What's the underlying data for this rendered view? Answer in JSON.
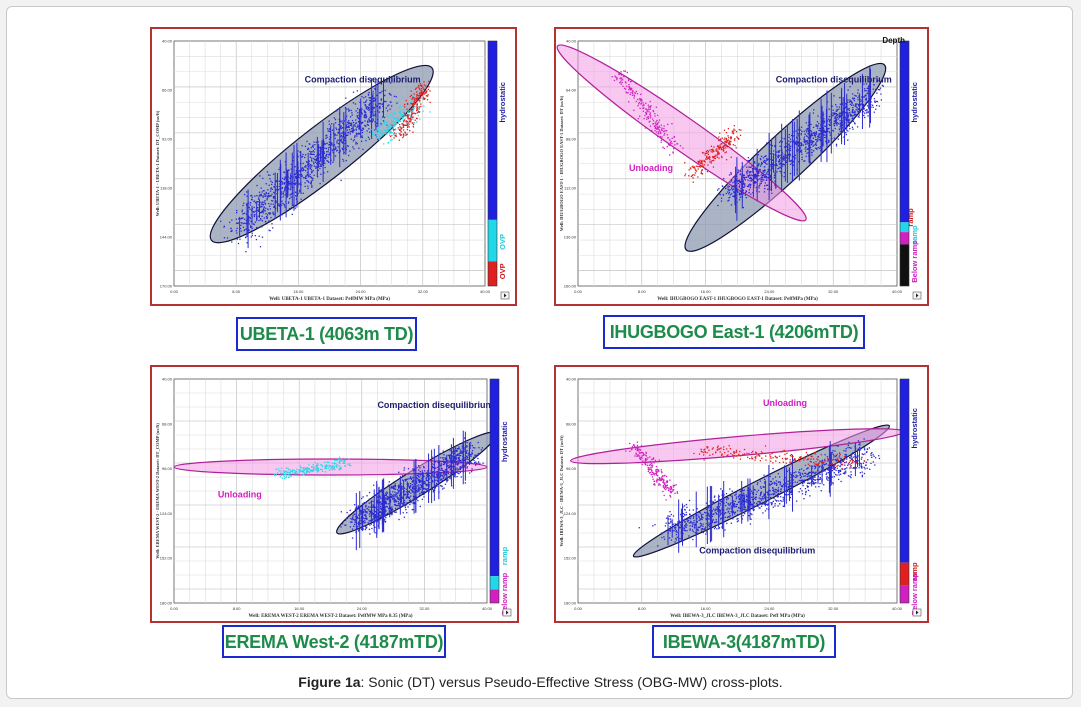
{
  "figure": {
    "caption_prefix": "Figure 1a",
    "caption_text": ": Sonic (DT) versus Pseudo-Effective Stress (OBG-MW) cross-plots."
  },
  "colors": {
    "panel_border": "#b43232",
    "label_border": "#1a2ad0",
    "label_text": "#1d8c4a",
    "points_blue": "#2b2bd0",
    "points_cyan": "#27d8e8",
    "points_red": "#e02020",
    "ellipse_gray": "#8e9bb0",
    "ellipse_pink": "#f39ae6",
    "annotation_navy": "#1c1c70",
    "annotation_magenta": "#d020c0"
  },
  "chart_data": [
    {
      "type": "scatter",
      "title": "UBETA-1 (4063m TD)",
      "xlabel": "Well: UBETA-1   UBETA-1 Dataset: PeffMW MPa (MPa)",
      "ylabel": "Well: UBETA-1 - UBETA-1 Dataset: DT_COMP (us/ft)",
      "xlim": [
        0,
        40
      ],
      "ylim": [
        40,
        170
      ],
      "x_ticks": [
        "0.00",
        "8.00",
        "16.00",
        "24.00",
        "32.00",
        "40.00"
      ],
      "y_ticks": [
        "40.00",
        "66.00",
        "92.00",
        "118.00",
        "144.00",
        "170.00"
      ],
      "grid": true,
      "annotations": [
        {
          "text": "Compaction disequilibrium",
          "ellipse_color": "gray",
          "center": [
            19,
            100
          ],
          "semi_major": 18,
          "semi_minor": 14,
          "angle": 38
        }
      ],
      "color_scale": [
        {
          "name": "hydrostatic",
          "color": "#2020e0",
          "from": 0,
          "to": 0.73
        },
        {
          "name": "OVP",
          "color": "#22d8e8",
          "from": 0.73,
          "to": 0.9
        },
        {
          "name": "OVP",
          "color": "#e02020",
          "from": 0.9,
          "to": 1
        }
      ],
      "scale_labels": [
        "hydrostatic",
        "OVP",
        "OVP"
      ],
      "scale_label_colors": [
        "#1c1ca0",
        "#22c8d8",
        "#d01818"
      ],
      "series": [
        {
          "name": "hydrostatic",
          "color": "#2b2bd0",
          "cluster": {
            "x": [
              8,
              27
            ],
            "y": [
              140,
              70
            ],
            "spread": 9
          }
        },
        {
          "name": "OVP",
          "color": "#27d8e8",
          "cluster": {
            "x": [
              26,
              31
            ],
            "y": [
              90,
              75
            ],
            "spread": 6
          }
        },
        {
          "name": "OVP",
          "color": "#e02020",
          "cluster": {
            "x": [
              29,
              32
            ],
            "y": [
              90,
              64
            ],
            "spread": 4
          }
        }
      ]
    },
    {
      "type": "scatter",
      "title": "IHUGBOGO East-1 (4206mTD)",
      "xlabel": "Well: IHUGBOGO EAST-1   IHUGBOGO EAST-1 Dataset: PeffMPa (MPa)",
      "ylabel": "Well: IHUGBOGO EAST-1 - IHUGBOGO EAST-1 Dataset: DT (us/ft)",
      "xlim": [
        0,
        40
      ],
      "ylim": [
        40,
        160
      ],
      "x_ticks": [
        "0.00",
        "8.00",
        "16.00",
        "24.00",
        "32.00",
        "40.00"
      ],
      "y_ticks": [
        "40.00",
        "64.00",
        "88.00",
        "112.00",
        "136.00",
        "160.00"
      ],
      "grid": true,
      "annotations": [
        {
          "text": "Compaction disequilibrium",
          "ellipse_color": "gray",
          "center": [
            26,
            97
          ],
          "semi_major": 17,
          "semi_minor": 11,
          "angle": 43
        },
        {
          "text": "Unloading",
          "ellipse_color": "pink",
          "center": [
            13,
            85
          ],
          "semi_major": 19,
          "semi_minor": 8,
          "angle": -35
        }
      ],
      "legend_title": "Depth",
      "color_scale": [
        {
          "name": "hydrostatic",
          "color": "#2020e0",
          "from": 0,
          "to": 0.74
        },
        {
          "name": "ramp",
          "color": "#22d8e8",
          "from": 0.74,
          "to": 0.78
        },
        {
          "name": "Below ramp",
          "color": "#d020c0",
          "from": 0.78,
          "to": 0.83
        },
        {
          "name": "",
          "color": "#101010",
          "from": 0.83,
          "to": 1
        }
      ],
      "scale_labels": [
        "hydrostatic",
        "ramp",
        "ramp",
        "Below ramp"
      ],
      "scale_label_colors": [
        "#1c1ca0",
        "#d01818",
        "#22c8d8",
        "#d020c0"
      ],
      "series": [
        {
          "name": "hydrostatic",
          "color": "#2b2bd0",
          "cluster": {
            "x": [
              19,
              37
            ],
            "y": [
              115,
              66
            ],
            "spread": 7
          }
        },
        {
          "name": "ramp",
          "color": "#e02020",
          "cluster": {
            "x": [
              14,
              20
            ],
            "y": [
              106,
              84
            ],
            "spread": 4
          }
        },
        {
          "name": "Below ramp",
          "color": "#d020c0",
          "cluster": {
            "x": [
              5,
              12
            ],
            "y": [
              56,
              92
            ],
            "spread": 4
          }
        }
      ]
    },
    {
      "type": "scatter",
      "title": "EREMA West-2 (4187mTD)",
      "xlabel": "Well: EREMA WEST-2   EREMA WEST-2 Dataset: PeffMW MPa 0.35 (MPa)",
      "ylabel": "Well: EREMA WEST-2 - EREMA WEST-2 Dataset: DT_COMP (us/ft)",
      "xlim": [
        0,
        40
      ],
      "ylim": [
        40,
        180
      ],
      "x_ticks": [
        "0.00",
        "8.00",
        "16.00",
        "24.00",
        "32.00",
        "40.00"
      ],
      "y_ticks": [
        "40.00",
        "68.00",
        "96.00",
        "124.00",
        "152.00",
        "180.00"
      ],
      "grid": true,
      "annotations": [
        {
          "text": "Compaction disequilibrium",
          "ellipse_color": "gray",
          "center": [
            31,
            105
          ],
          "semi_major": 12,
          "semi_minor": 8,
          "angle": 32
        },
        {
          "text": "Unloading",
          "ellipse_color": "pink",
          "center": [
            20,
            95
          ],
          "semi_major": 20,
          "semi_minor": 5,
          "angle": 0
        }
      ],
      "color_scale": [
        {
          "name": "hydrostatic",
          "color": "#2020e0",
          "from": 0,
          "to": 0.88
        },
        {
          "name": "ramp",
          "color": "#22d8e8",
          "from": 0.88,
          "to": 0.94
        },
        {
          "name": "Below ramp",
          "color": "#d020c0",
          "from": 0.94,
          "to": 1
        }
      ],
      "scale_labels": [
        "hydrostatic",
        "ramp",
        "Below ramp"
      ],
      "scale_label_colors": [
        "#1c1ca0",
        "#22c8d8",
        "#d020c0"
      ],
      "series": [
        {
          "name": "hydrostatic",
          "color": "#2b2bd0",
          "cluster": {
            "x": [
              23,
              38
            ],
            "y": [
              130,
              86
            ],
            "spread": 8
          }
        },
        {
          "name": "ramp",
          "color": "#27d8e8",
          "cluster": {
            "x": [
              13,
              22
            ],
            "y": [
              100,
              92
            ],
            "spread": 3
          }
        }
      ]
    },
    {
      "type": "scatter",
      "title": "IBEWA-3(4187mTD)",
      "xlabel": "Well: IBEWA-3_JLC   IBEWA-3_JLC Dataset: Peff MPa (MPa)",
      "ylabel": "Well: IBEWA-3_JLC - IBEWA-3_JLC Dataset: DT (us/ft)",
      "xlim": [
        0,
        40
      ],
      "ylim": [
        40,
        180
      ],
      "x_ticks": [
        "0.00",
        "8.00",
        "16.00",
        "24.00",
        "32.00",
        "40.00"
      ],
      "y_ticks": [
        "40.00",
        "68.00",
        "96.00",
        "124.00",
        "152.00",
        "180.00"
      ],
      "grid": true,
      "annotations": [
        {
          "text": "Compaction disequilibrium",
          "ellipse_color": "gray",
          "center": [
            23,
            110
          ],
          "semi_major": 18,
          "semi_minor": 7,
          "angle": 27
        },
        {
          "text": "Unloading",
          "ellipse_color": "pink",
          "center": [
            20,
            82
          ],
          "semi_major": 21,
          "semi_minor": 6,
          "angle": 5
        }
      ],
      "color_scale": [
        {
          "name": "hydrostatic",
          "color": "#2020e0",
          "from": 0,
          "to": 0.82
        },
        {
          "name": "ramp",
          "color": "#e02020",
          "from": 0.82,
          "to": 0.92
        },
        {
          "name": "Below ramp",
          "color": "#d020c0",
          "from": 0.92,
          "to": 1
        }
      ],
      "scale_labels": [
        "hydrostatic",
        "ramp",
        "Below ramp"
      ],
      "scale_label_colors": [
        "#1c1ca0",
        "#d01818",
        "#d020c0"
      ],
      "series": [
        {
          "name": "hydrostatic",
          "color": "#2b2bd0",
          "cluster": {
            "x": [
              11,
              36
            ],
            "y": [
              135,
              88
            ],
            "spread": 9
          }
        },
        {
          "name": "ramp",
          "color": "#e02020",
          "cluster": {
            "x": [
              15,
              35
            ],
            "y": [
              84,
              92
            ],
            "spread": 4
          }
        },
        {
          "name": "Below ramp",
          "color": "#d020c0",
          "cluster": {
            "x": [
              7,
              12
            ],
            "y": [
              82,
              112
            ],
            "spread": 4
          }
        }
      ]
    }
  ]
}
